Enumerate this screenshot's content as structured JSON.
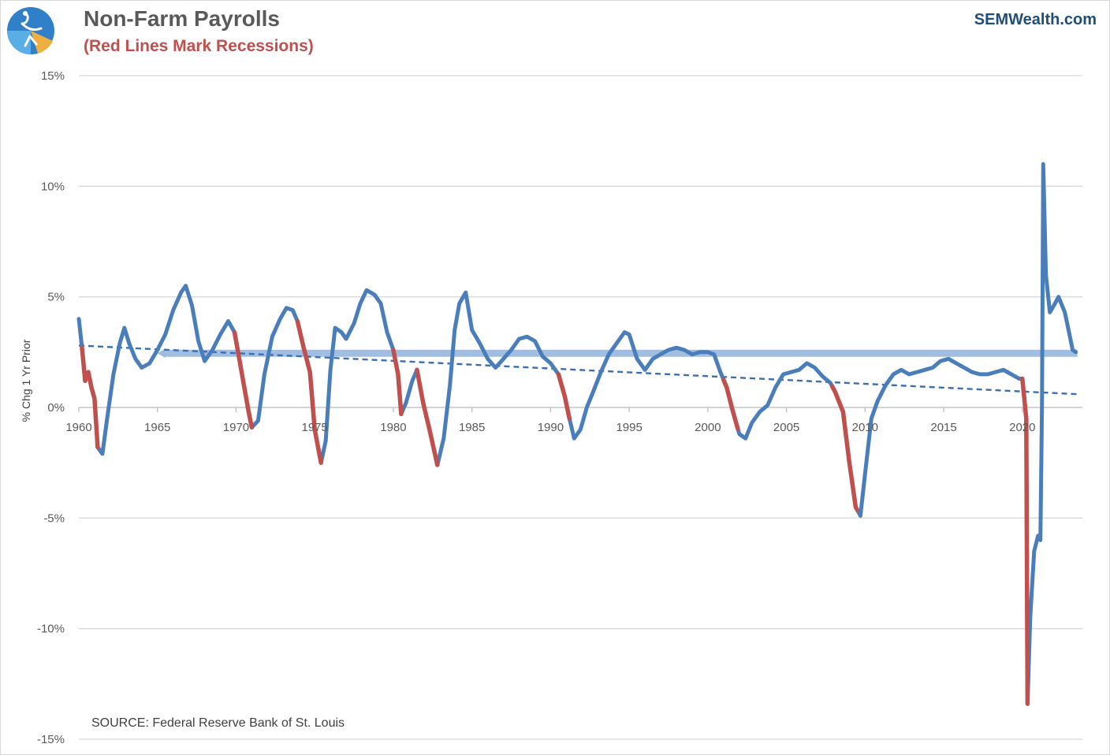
{
  "header": {
    "title": "Non-Farm Payrolls",
    "subtitle": "(Red Lines Mark Recessions)",
    "brand": "SEMWealth.com"
  },
  "colors": {
    "series": "#4a7ebb",
    "recession": "#c0504d",
    "trend": "#3a6fb0",
    "average_band": "#9dbbe0",
    "grid": "#d9d9d9",
    "logo_blue": "#2f80c8",
    "logo_gold": "#f0b040"
  },
  "chart_data": {
    "type": "line",
    "ylabel": "% Chg 1 Yr Prior",
    "source_note": "SOURCE: Federal Reserve Bank of St. Louis",
    "x_ticks": [
      "1960",
      "1965",
      "1970",
      "1975",
      "1980",
      "1985",
      "1990",
      "1995",
      "2000",
      "2005",
      "2010",
      "2015",
      "2020"
    ],
    "y_ticks": [
      "15%",
      "10%",
      "5%",
      "0%",
      "-5%",
      "-10%",
      "-15%"
    ],
    "xlim": [
      1960,
      2023.5
    ],
    "ylim": [
      -15,
      15
    ],
    "grid": true,
    "series": [
      {
        "values": [
          [
            1960.0,
            4.0
          ],
          [
            1960.2,
            2.7
          ],
          [
            1960.4,
            1.2
          ],
          [
            1960.6,
            1.6
          ],
          [
            1960.8,
            0.9
          ],
          [
            1961.0,
            0.4
          ],
          [
            1961.2,
            -1.8
          ],
          [
            1961.5,
            -2.1
          ],
          [
            1961.8,
            -0.5
          ],
          [
            1962.2,
            1.5
          ],
          [
            1962.6,
            2.9
          ],
          [
            1962.9,
            3.6
          ],
          [
            1963.2,
            2.9
          ],
          [
            1963.6,
            2.2
          ],
          [
            1964.0,
            1.8
          ],
          [
            1964.5,
            2.0
          ],
          [
            1965.0,
            2.6
          ],
          [
            1965.5,
            3.3
          ],
          [
            1966.0,
            4.4
          ],
          [
            1966.5,
            5.2
          ],
          [
            1966.8,
            5.5
          ],
          [
            1967.2,
            4.6
          ],
          [
            1967.6,
            3.0
          ],
          [
            1968.0,
            2.1
          ],
          [
            1968.5,
            2.6
          ],
          [
            1969.0,
            3.3
          ],
          [
            1969.5,
            3.9
          ],
          [
            1969.9,
            3.4
          ],
          [
            1970.2,
            2.2
          ],
          [
            1970.5,
            1.0
          ],
          [
            1970.8,
            -0.2
          ],
          [
            1971.0,
            -0.9
          ],
          [
            1971.4,
            -0.6
          ],
          [
            1971.8,
            1.5
          ],
          [
            1972.3,
            3.2
          ],
          [
            1972.8,
            4.0
          ],
          [
            1973.2,
            4.5
          ],
          [
            1973.6,
            4.4
          ],
          [
            1973.9,
            3.9
          ],
          [
            1974.3,
            2.7
          ],
          [
            1974.7,
            1.6
          ],
          [
            1975.0,
            -1.0
          ],
          [
            1975.4,
            -2.5
          ],
          [
            1975.7,
            -1.5
          ],
          [
            1976.0,
            1.7
          ],
          [
            1976.3,
            3.6
          ],
          [
            1976.7,
            3.4
          ],
          [
            1977.0,
            3.1
          ],
          [
            1977.5,
            3.8
          ],
          [
            1977.9,
            4.7
          ],
          [
            1978.3,
            5.3
          ],
          [
            1978.8,
            5.1
          ],
          [
            1979.2,
            4.7
          ],
          [
            1979.6,
            3.4
          ],
          [
            1980.0,
            2.6
          ],
          [
            1980.3,
            1.5
          ],
          [
            1980.5,
            -0.3
          ],
          [
            1980.8,
            0.2
          ],
          [
            1981.2,
            1.2
          ],
          [
            1981.5,
            1.7
          ],
          [
            1981.9,
            0.2
          ],
          [
            1982.3,
            -1.0
          ],
          [
            1982.8,
            -2.6
          ],
          [
            1983.2,
            -1.4
          ],
          [
            1983.6,
            1.0
          ],
          [
            1983.9,
            3.5
          ],
          [
            1984.2,
            4.7
          ],
          [
            1984.6,
            5.2
          ],
          [
            1985.0,
            3.5
          ],
          [
            1985.5,
            2.9
          ],
          [
            1986.0,
            2.2
          ],
          [
            1986.5,
            1.8
          ],
          [
            1987.0,
            2.2
          ],
          [
            1987.5,
            2.6
          ],
          [
            1988.0,
            3.1
          ],
          [
            1988.5,
            3.2
          ],
          [
            1989.0,
            3.0
          ],
          [
            1989.5,
            2.3
          ],
          [
            1990.0,
            2.0
          ],
          [
            1990.5,
            1.5
          ],
          [
            1990.9,
            0.5
          ],
          [
            1991.2,
            -0.5
          ],
          [
            1991.5,
            -1.4
          ],
          [
            1991.9,
            -1.0
          ],
          [
            1992.3,
            0.0
          ],
          [
            1992.7,
            0.7
          ],
          [
            1993.2,
            1.6
          ],
          [
            1993.7,
            2.4
          ],
          [
            1994.2,
            2.9
          ],
          [
            1994.7,
            3.4
          ],
          [
            1995.0,
            3.3
          ],
          [
            1995.5,
            2.2
          ],
          [
            1996.0,
            1.7
          ],
          [
            1996.5,
            2.2
          ],
          [
            1997.0,
            2.4
          ],
          [
            1997.5,
            2.6
          ],
          [
            1998.0,
            2.7
          ],
          [
            1998.5,
            2.6
          ],
          [
            1999.0,
            2.4
          ],
          [
            1999.5,
            2.5
          ],
          [
            2000.0,
            2.5
          ],
          [
            2000.4,
            2.4
          ],
          [
            2000.8,
            1.6
          ],
          [
            2001.2,
            0.9
          ],
          [
            2001.6,
            -0.2
          ],
          [
            2002.0,
            -1.2
          ],
          [
            2002.4,
            -1.4
          ],
          [
            2002.8,
            -0.7
          ],
          [
            2003.3,
            -0.2
          ],
          [
            2003.8,
            0.1
          ],
          [
            2004.3,
            0.9
          ],
          [
            2004.8,
            1.5
          ],
          [
            2005.3,
            1.6
          ],
          [
            2005.8,
            1.7
          ],
          [
            2006.3,
            2.0
          ],
          [
            2006.8,
            1.8
          ],
          [
            2007.3,
            1.4
          ],
          [
            2007.8,
            1.1
          ],
          [
            2008.1,
            0.7
          ],
          [
            2008.6,
            -0.2
          ],
          [
            2009.0,
            -2.5
          ],
          [
            2009.4,
            -4.5
          ],
          [
            2009.7,
            -4.9
          ],
          [
            2010.0,
            -3.0
          ],
          [
            2010.4,
            -0.5
          ],
          [
            2010.8,
            0.3
          ],
          [
            2011.3,
            1.0
          ],
          [
            2011.8,
            1.5
          ],
          [
            2012.3,
            1.7
          ],
          [
            2012.8,
            1.5
          ],
          [
            2013.3,
            1.6
          ],
          [
            2013.8,
            1.7
          ],
          [
            2014.3,
            1.8
          ],
          [
            2014.8,
            2.1
          ],
          [
            2015.3,
            2.2
          ],
          [
            2015.8,
            2.0
          ],
          [
            2016.3,
            1.8
          ],
          [
            2016.8,
            1.6
          ],
          [
            2017.3,
            1.5
          ],
          [
            2017.8,
            1.5
          ],
          [
            2018.3,
            1.6
          ],
          [
            2018.8,
            1.7
          ],
          [
            2019.3,
            1.5
          ],
          [
            2019.8,
            1.3
          ],
          [
            2020.0,
            1.3
          ],
          [
            2020.25,
            -0.5
          ],
          [
            2020.33,
            -13.4
          ],
          [
            2020.5,
            -9.5
          ],
          [
            2020.75,
            -6.5
          ],
          [
            2021.0,
            -5.8
          ],
          [
            2021.15,
            -6.0
          ],
          [
            2021.25,
            0.0
          ],
          [
            2021.33,
            11.0
          ],
          [
            2021.5,
            6.0
          ],
          [
            2021.75,
            4.3
          ],
          [
            2022.0,
            4.6
          ],
          [
            2022.3,
            5.0
          ],
          [
            2022.7,
            4.3
          ],
          [
            2023.0,
            3.3
          ],
          [
            2023.2,
            2.6
          ],
          [
            2023.4,
            2.5
          ]
        ]
      }
    ],
    "recessions": [
      [
        1960.2,
        1961.2
      ],
      [
        1969.9,
        1971.0
      ],
      [
        1973.9,
        1975.4
      ],
      [
        1980.0,
        1980.5
      ],
      [
        1981.5,
        1982.8
      ],
      [
        1990.5,
        1991.2
      ],
      [
        2001.0,
        2001.9
      ],
      [
        2007.9,
        2009.5
      ],
      [
        2020.0,
        2020.33
      ]
    ],
    "trend_line": {
      "x": [
        1960.0,
        2023.5
      ],
      "y": [
        2.8,
        0.6
      ]
    },
    "average_band": {
      "x": [
        1965.0,
        2023.5
      ],
      "y": 2.45
    }
  }
}
